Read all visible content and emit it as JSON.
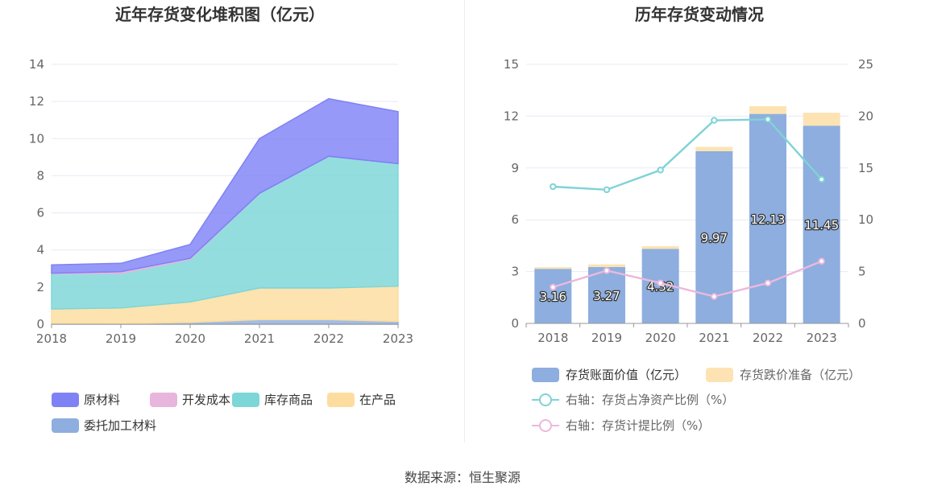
{
  "source_text": "数据来源：恒生聚源",
  "colors": {
    "raw_material": "#7f82f5",
    "dev_cost": "#e8b5dc",
    "goods": "#7dd6d8",
    "wip": "#fddd9f",
    "consigned": "#8daede",
    "book_value": "#8daede",
    "impairment": "#fde3b3",
    "ratio_assets": "#7fd3d6",
    "ratio_provision": "#ecb8dc",
    "grid": "#e8e9f4",
    "axis": "#999999"
  },
  "chart_data": [
    {
      "type": "area",
      "stacked": true,
      "title": "近年存货变化堆积图（亿元）",
      "x": [
        "2018",
        "2019",
        "2020",
        "2021",
        "2022",
        "2023"
      ],
      "ylim": [
        0,
        14
      ],
      "yticks": [
        "0",
        "2",
        "4",
        "6",
        "8",
        "10",
        "12",
        "14"
      ],
      "grid": true,
      "legend_position": "bottom",
      "series": [
        {
          "name": "委托加工材料",
          "color_key": "consigned",
          "values": [
            0.02,
            0.03,
            0.1,
            0.25,
            0.25,
            0.15
          ]
        },
        {
          "name": "在产品",
          "color_key": "wip",
          "values": [
            0.8,
            0.85,
            1.1,
            1.7,
            1.7,
            1.9
          ]
        },
        {
          "name": "库存商品",
          "color_key": "goods",
          "values": [
            1.9,
            1.85,
            2.3,
            5.1,
            7.1,
            6.6
          ]
        },
        {
          "name": "开发成本",
          "color_key": "dev_cost",
          "values": [
            0.03,
            0.1,
            0.05,
            0.0,
            0.0,
            0.0
          ]
        },
        {
          "name": "原材料",
          "color_key": "raw_material",
          "values": [
            0.45,
            0.45,
            0.75,
            2.95,
            3.1,
            2.8
          ]
        }
      ],
      "legend": [
        {
          "name": "原材料",
          "color_key": "raw_material"
        },
        {
          "name": "开发成本",
          "color_key": "dev_cost"
        },
        {
          "name": "库存商品",
          "color_key": "goods"
        },
        {
          "name": "在产品",
          "color_key": "wip"
        },
        {
          "name": "委托加工材料",
          "color_key": "consigned"
        }
      ]
    },
    {
      "type": "bar",
      "stacked": true,
      "title": "历年存货变动情况",
      "categories": [
        "2018",
        "2019",
        "2020",
        "2021",
        "2022",
        "2023"
      ],
      "ylim": [
        0,
        15
      ],
      "yticks": [
        "0",
        "3",
        "6",
        "9",
        "12",
        "15"
      ],
      "y2lim": [
        0,
        25
      ],
      "y2ticks": [
        "0",
        "5",
        "10",
        "15",
        "20",
        "25"
      ],
      "grid": true,
      "legend_position": "bottom",
      "series": [
        {
          "name": "存货账面价值（亿元）",
          "kind": "bar",
          "color_key": "book_value",
          "values": [
            3.16,
            3.27,
            4.32,
            9.97,
            12.13,
            11.45
          ],
          "labels": [
            "3.16",
            "3.27",
            "4.32",
            "9.97",
            "12.13",
            "11.45"
          ]
        },
        {
          "name": "存货跌价准备（亿元）",
          "kind": "bar",
          "color_key": "impairment",
          "values": [
            0.1,
            0.15,
            0.15,
            0.25,
            0.45,
            0.75
          ]
        },
        {
          "name": "右轴：存货占净资产比例（%）",
          "kind": "line",
          "axis": "right",
          "color_key": "ratio_assets",
          "values": [
            13.2,
            12.9,
            14.8,
            19.6,
            19.7,
            13.9
          ]
        },
        {
          "name": "右轴：存货计提比例（%）",
          "kind": "line",
          "axis": "right",
          "color_key": "ratio_provision",
          "values": [
            3.5,
            5.1,
            3.9,
            2.6,
            3.9,
            6.0
          ]
        }
      ]
    }
  ]
}
